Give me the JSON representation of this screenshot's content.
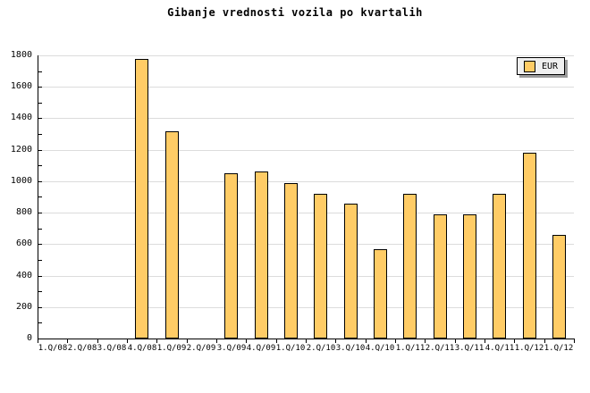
{
  "title": "Gibanje vrednosti vozila po kvartalih",
  "legend": {
    "label": "EUR"
  },
  "colors": {
    "bar_fill": "#ffcc66",
    "bar_border": "#000000",
    "grid": "#dcdcdc",
    "axis": "#000000",
    "legend_bg": "#efefef",
    "legend_shadow": "#9a9a9a"
  },
  "chart_data": {
    "type": "bar",
    "title": "Gibanje vrednosti vozila po kvartalih",
    "categories": [
      "1.Q/08",
      "2.Q/08",
      "3.Q/08",
      "4.Q/08",
      "1.Q/09",
      "2.Q/09",
      "3.Q/09",
      "4.Q/09",
      "1.Q/10",
      "2.Q/10",
      "3.Q/10",
      "4.Q/10",
      "1.Q/11",
      "2.Q/11",
      "3.Q/11",
      "4.Q/11",
      "1.Q/12",
      "1.Q/12"
    ],
    "series": [
      {
        "name": "EUR",
        "values": [
          0,
          0,
          0,
          1780,
          1320,
          0,
          1050,
          1060,
          990,
          920,
          860,
          570,
          920,
          790,
          790,
          920,
          1180,
          660
        ]
      }
    ],
    "ylabel": "",
    "xlabel": "",
    "ylim": [
      0,
      1800
    ],
    "ytick_step": 200,
    "yticks": [
      0,
      200,
      400,
      600,
      800,
      1000,
      1200,
      1400,
      1600,
      1800
    ],
    "grid": true,
    "legend_position": "top-right"
  }
}
